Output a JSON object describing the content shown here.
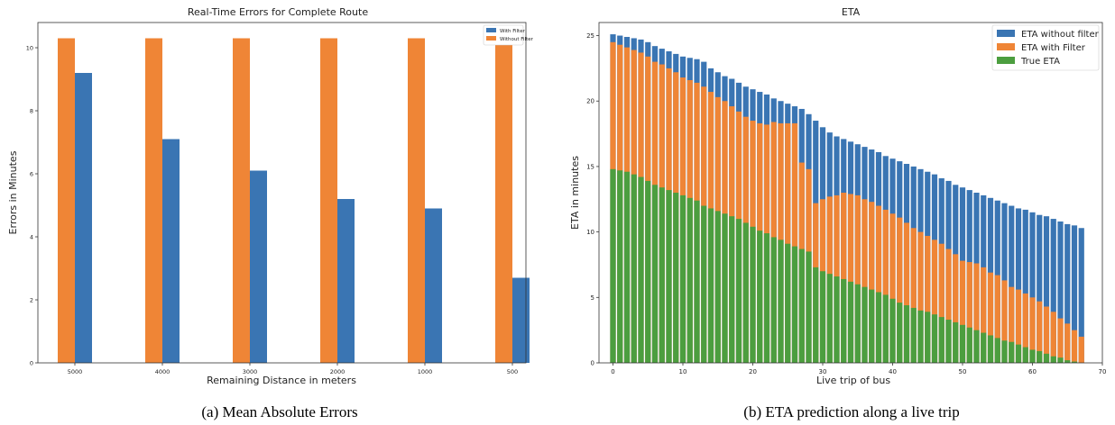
{
  "chart_data": [
    {
      "type": "bar",
      "title": "Real-Time Errors for Complete Route",
      "xlabel": "Remaining Distance in meters",
      "ylabel": "Errors in Minutes",
      "categories": [
        "5000",
        "4000",
        "3000",
        "2000",
        "1000",
        "500"
      ],
      "ylim": [
        0,
        10.8
      ],
      "yticks": [
        0,
        2,
        4,
        6,
        8,
        10
      ],
      "legend_position": "top-right",
      "grid": false,
      "series": [
        {
          "name": "With Filter",
          "color": "#3a75b3",
          "values": [
            9.2,
            7.1,
            6.1,
            5.2,
            4.9,
            2.7
          ]
        },
        {
          "name": "Without Filter",
          "color": "#ef8536",
          "values": [
            10.3,
            10.3,
            10.3,
            10.3,
            10.3,
            10.3
          ]
        }
      ],
      "caption": "(a) Mean Absolute Errors"
    },
    {
      "type": "bar",
      "title": "ETA",
      "xlabel": "Live trip of bus",
      "ylabel": "ETA in minutes",
      "xlim": [
        -2,
        70
      ],
      "ylim": [
        0,
        26
      ],
      "xticks": [
        0,
        10,
        20,
        30,
        40,
        50,
        60,
        70
      ],
      "yticks": [
        0,
        5,
        10,
        15,
        20,
        25
      ],
      "legend_position": "top-right",
      "grid": false,
      "x": [
        0,
        1,
        2,
        3,
        4,
        5,
        6,
        7,
        8,
        9,
        10,
        11,
        12,
        13,
        14,
        15,
        16,
        17,
        18,
        19,
        20,
        21,
        22,
        23,
        24,
        25,
        26,
        27,
        28,
        29,
        30,
        31,
        32,
        33,
        34,
        35,
        36,
        37,
        38,
        39,
        40,
        41,
        42,
        43,
        44,
        45,
        46,
        47,
        48,
        49,
        50,
        51,
        52,
        53,
        54,
        55,
        56,
        57,
        58,
        59,
        60,
        61,
        62,
        63,
        64,
        65,
        66,
        67
      ],
      "series": [
        {
          "name": "ETA without filter",
          "color": "#3a75b3",
          "values": [
            25.1,
            25.0,
            24.9,
            24.8,
            24.7,
            24.5,
            24.2,
            24.0,
            23.8,
            23.6,
            23.4,
            23.3,
            23.2,
            23.0,
            22.5,
            22.2,
            21.9,
            21.7,
            21.4,
            21.1,
            20.9,
            20.7,
            20.5,
            20.2,
            20.0,
            19.8,
            19.6,
            19.4,
            19.0,
            18.5,
            18.0,
            17.6,
            17.3,
            17.1,
            16.9,
            16.7,
            16.5,
            16.3,
            16.1,
            15.8,
            15.6,
            15.4,
            15.2,
            15.0,
            14.8,
            14.6,
            14.4,
            14.1,
            13.9,
            13.6,
            13.4,
            13.2,
            13.0,
            12.8,
            12.6,
            12.4,
            12.2,
            12.0,
            11.8,
            11.7,
            11.5,
            11.3,
            11.2,
            11.0,
            10.8,
            10.6,
            10.5,
            10.3
          ]
        },
        {
          "name": "ETA with Filter",
          "color": "#ef8536",
          "values": [
            24.5,
            24.3,
            24.1,
            23.9,
            23.7,
            23.4,
            23.0,
            22.8,
            22.5,
            22.2,
            21.8,
            21.6,
            21.4,
            21.1,
            20.7,
            20.3,
            20.0,
            19.6,
            19.2,
            18.8,
            18.5,
            18.3,
            18.2,
            18.4,
            18.3,
            18.3,
            18.3,
            15.3,
            14.8,
            12.2,
            12.5,
            12.7,
            12.8,
            13.0,
            12.9,
            12.8,
            12.5,
            12.3,
            12.0,
            11.7,
            11.4,
            11.1,
            10.7,
            10.3,
            10.0,
            9.7,
            9.4,
            9.1,
            8.7,
            8.3,
            7.8,
            7.7,
            7.6,
            7.3,
            6.9,
            6.7,
            6.3,
            5.8,
            5.6,
            5.3,
            5.0,
            4.7,
            4.3,
            3.9,
            3.4,
            3.0,
            2.5,
            2.0
          ]
        },
        {
          "name": "True ETA",
          "color": "#4c9e3f",
          "values": [
            14.8,
            14.7,
            14.6,
            14.4,
            14.2,
            13.9,
            13.6,
            13.4,
            13.2,
            13.0,
            12.8,
            12.6,
            12.4,
            12.0,
            11.8,
            11.6,
            11.4,
            11.2,
            11.0,
            10.7,
            10.4,
            10.1,
            9.9,
            9.6,
            9.4,
            9.1,
            8.9,
            8.7,
            8.5,
            7.3,
            7.0,
            6.8,
            6.6,
            6.4,
            6.2,
            6.0,
            5.8,
            5.6,
            5.4,
            5.2,
            4.9,
            4.6,
            4.4,
            4.2,
            4.0,
            3.9,
            3.7,
            3.5,
            3.3,
            3.1,
            2.9,
            2.7,
            2.5,
            2.3,
            2.1,
            1.9,
            1.7,
            1.6,
            1.4,
            1.2,
            1.0,
            0.9,
            0.7,
            0.5,
            0.4,
            0.2,
            0.1,
            0.0
          ]
        }
      ],
      "caption": "(b) ETA prediction along a live trip"
    }
  ]
}
